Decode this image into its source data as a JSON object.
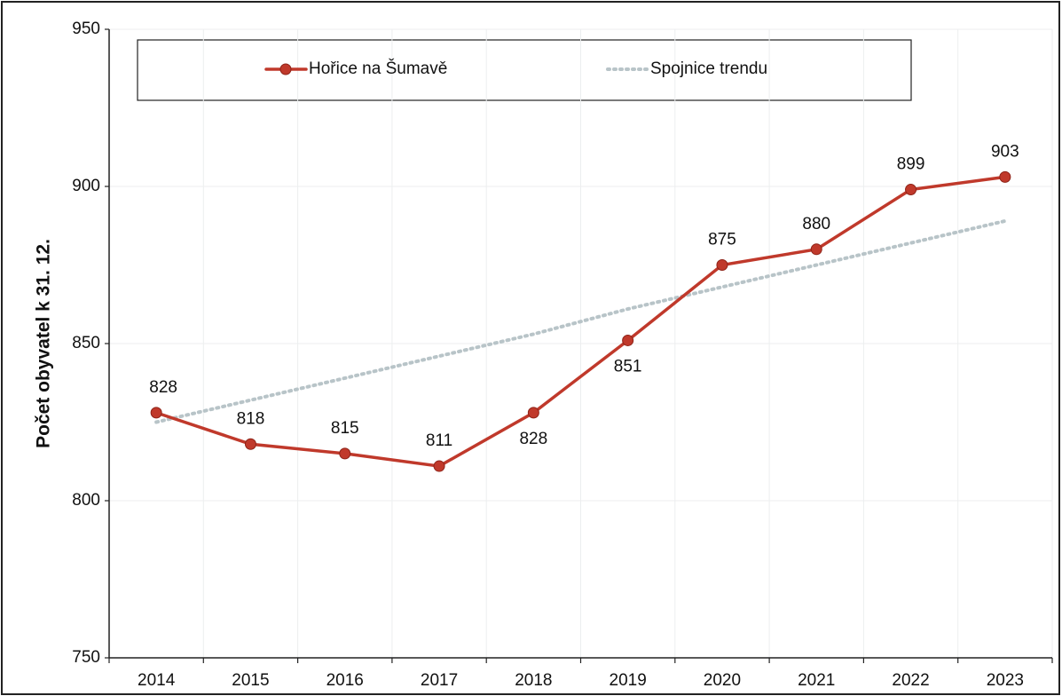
{
  "chart_data": {
    "type": "line",
    "y_label": "Počet obyvatel k 31. 12.",
    "categories": [
      "2014",
      "2015",
      "2016",
      "2017",
      "2018",
      "2019",
      "2020",
      "2021",
      "2022",
      "2023"
    ],
    "series": [
      {
        "name": "Hořice na Šumavě",
        "color": "#c0392b",
        "style": "solid",
        "marker": true,
        "data_labels": true,
        "values": [
          828,
          818,
          815,
          811,
          828,
          851,
          875,
          880,
          899,
          903
        ]
      },
      {
        "name": "Spojnice trendu",
        "color": "#b8c4c8",
        "style": "dotted",
        "marker": false,
        "data_labels": false,
        "values": [
          825,
          832,
          839,
          846,
          853,
          861,
          868,
          875,
          882,
          889
        ]
      }
    ],
    "ylim": [
      750,
      950
    ],
    "yticks": [
      750,
      800,
      850,
      900,
      950
    ],
    "grid": true,
    "legend": "top"
  }
}
